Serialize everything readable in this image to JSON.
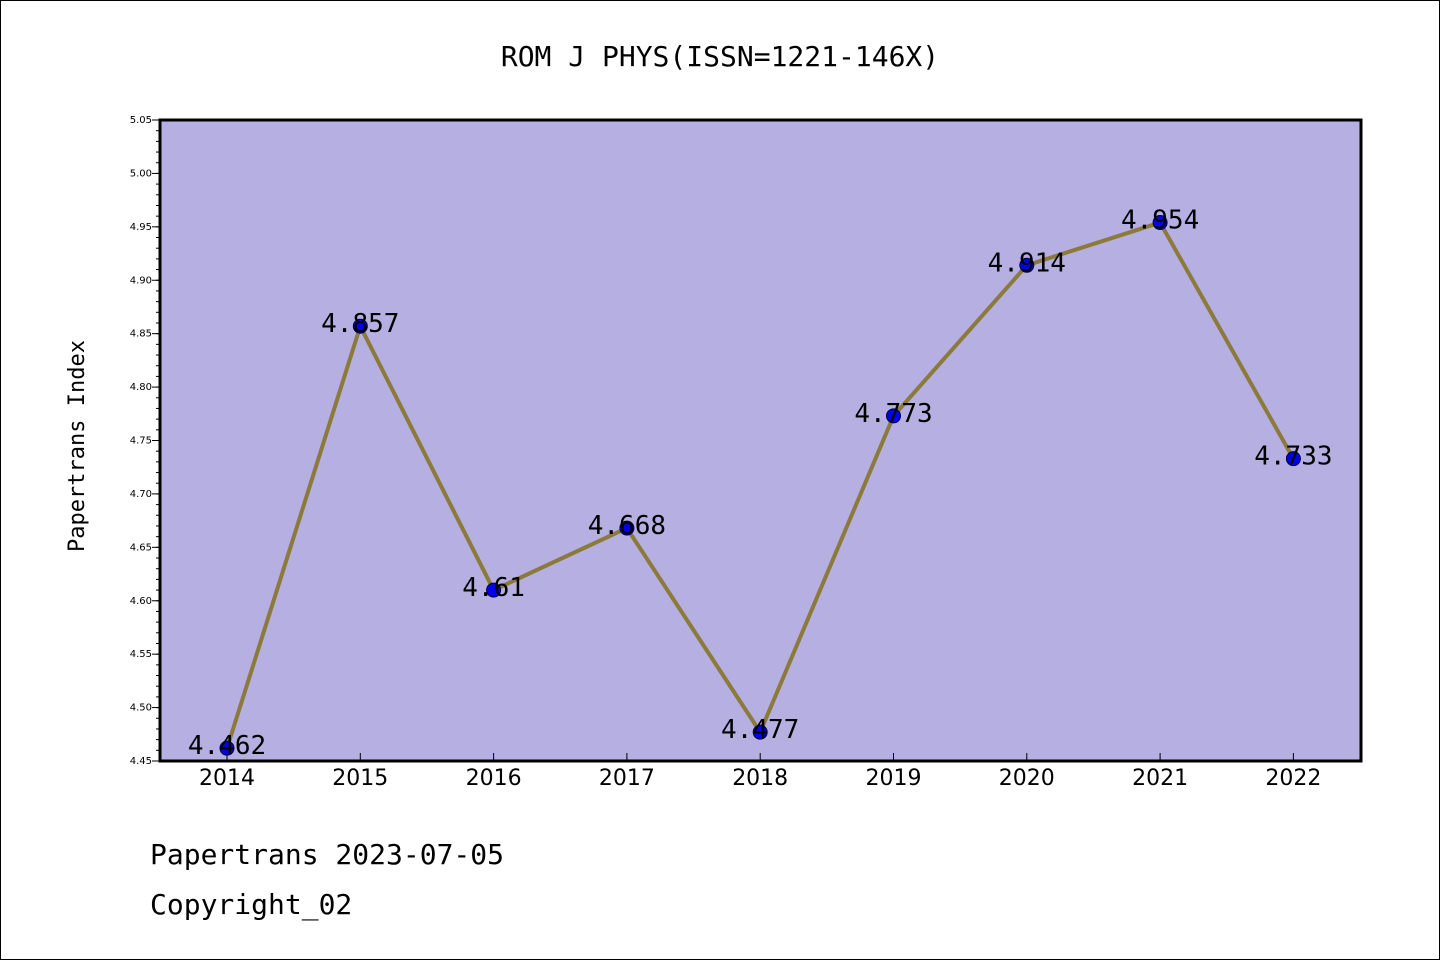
{
  "chart_data": {
    "type": "line",
    "title": "ROM J PHYS(ISSN=1221-146X)",
    "ylabel": "Papertrans Index",
    "xlabel": "",
    "categories": [
      "2014",
      "2015",
      "2016",
      "2017",
      "2018",
      "2019",
      "2020",
      "2021",
      "2022"
    ],
    "values": [
      4.462,
      4.857,
      4.61,
      4.668,
      4.477,
      4.773,
      4.914,
      4.954,
      4.733
    ],
    "data_labels": [
      "4.462",
      "4.857",
      "4.61",
      "4.668",
      "4.477",
      "4.773",
      "4.914",
      "4.954",
      "4.733"
    ],
    "ylim": [
      4.45,
      5.05
    ],
    "yticks": [
      "4.45",
      "4.50",
      "4.55",
      "4.60",
      "4.65",
      "4.70",
      "4.75",
      "4.80",
      "4.85",
      "4.90",
      "4.95",
      "5.00",
      "5.05"
    ],
    "grid": false,
    "legend": "none",
    "colors": {
      "plot_background": "#b5afe2",
      "line": "#8b7a3a",
      "marker": "#0000ee"
    }
  },
  "footer": {
    "line1": "Papertrans 2023-07-05",
    "line2": "Copyright_02"
  }
}
